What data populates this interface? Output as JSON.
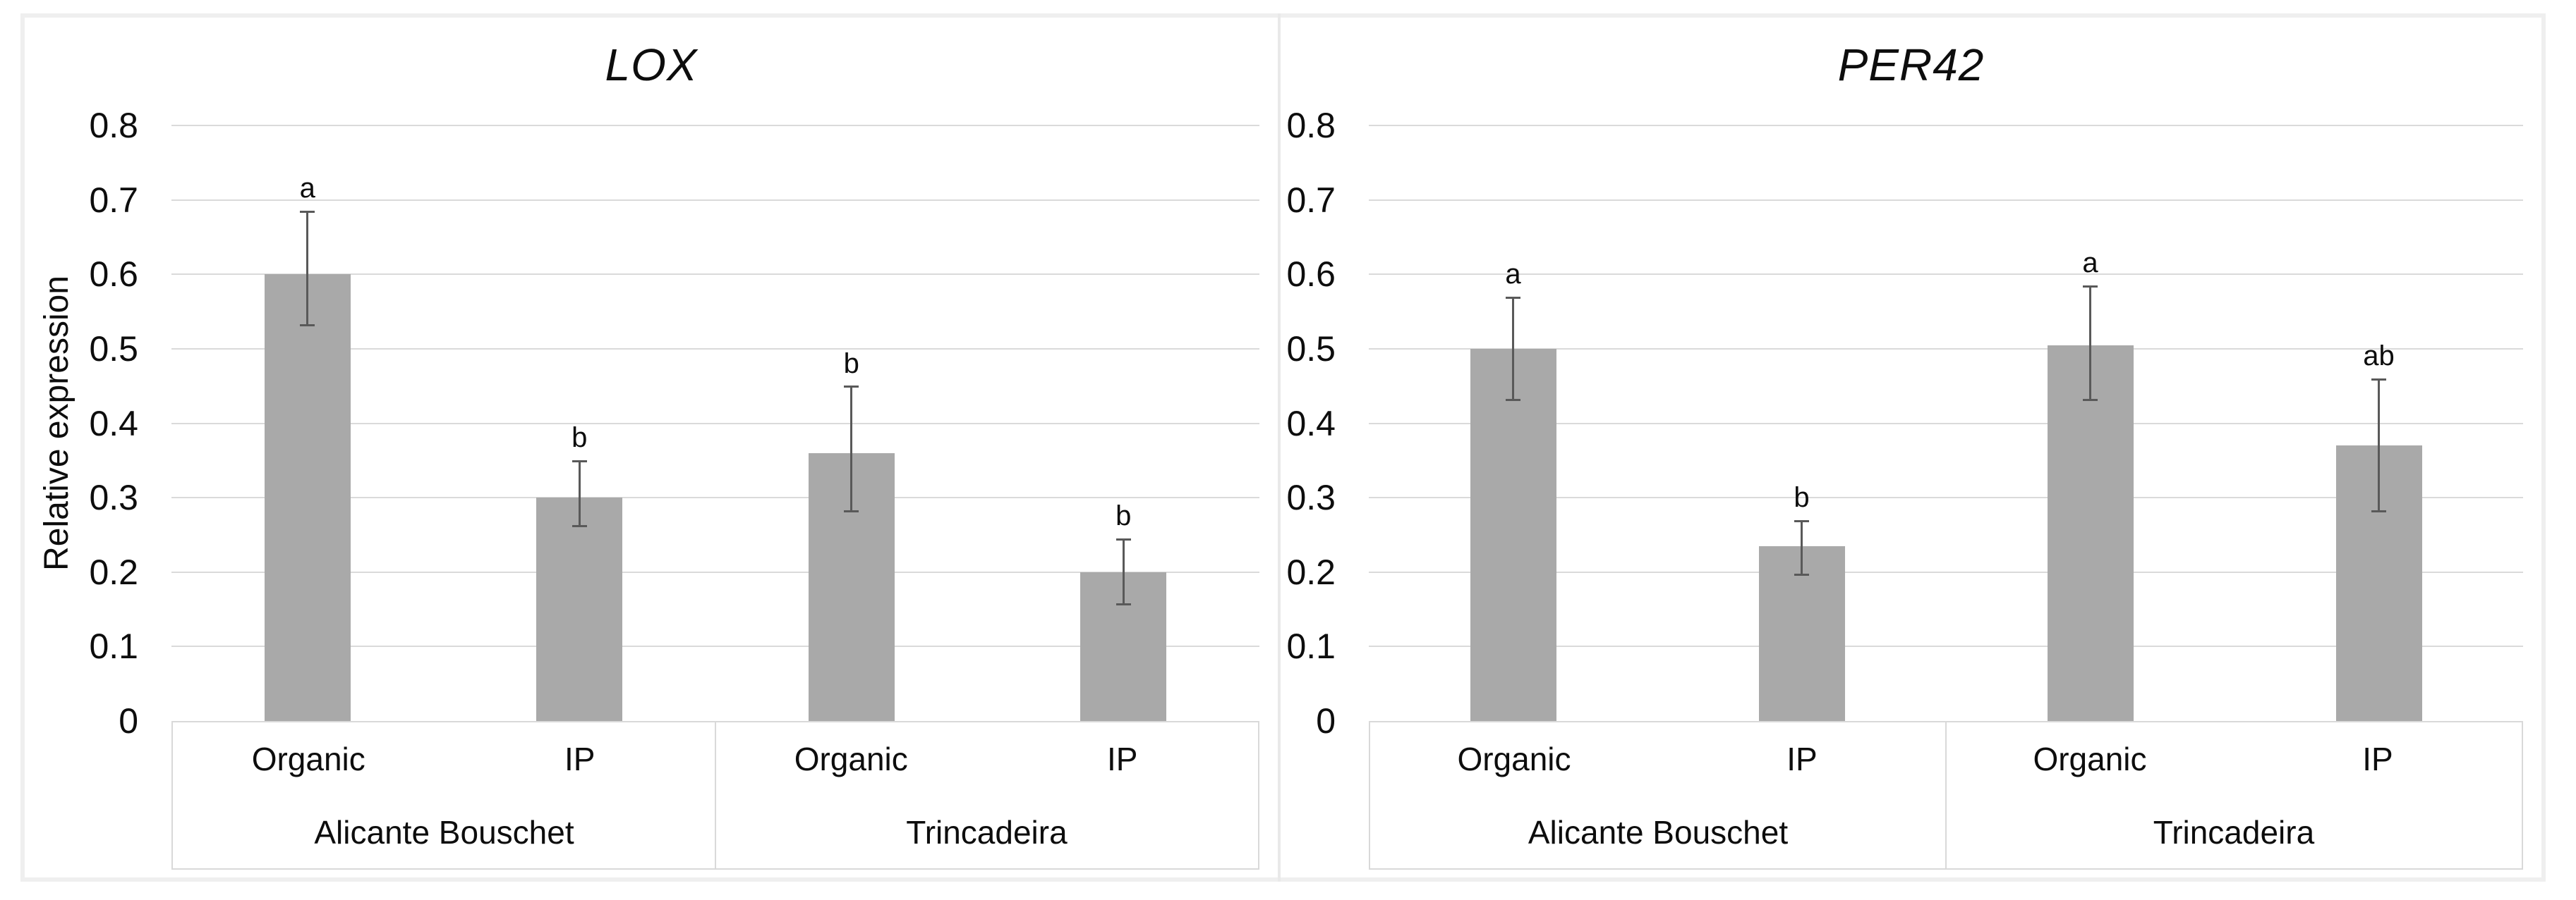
{
  "figure": {
    "description": "Two-panel grouped bar figure of gene relative expression with SD error bars and significance letters",
    "shared_ylabel": "Relative expression",
    "colors": {
      "bar_fill": "#a9a9a9",
      "error_bar": "#595959",
      "gridline": "#dadada",
      "axis_box_border": "#d9d9d9",
      "frame_border": "#efefef",
      "divider": "#e9e9e9",
      "text": "#0d0d0d"
    }
  },
  "chart_data": [
    {
      "type": "bar",
      "title": "LOX",
      "ylabel": "Relative expression",
      "xlabel": "",
      "ylim": [
        0,
        0.8
      ],
      "ytick_labels": [
        "0.8",
        "0.7",
        "0.6",
        "0.5",
        "0.4",
        "0.3",
        "0.2",
        "0.1",
        "0"
      ],
      "grid": true,
      "legend": false,
      "group_categories": [
        "Alicante Bouschet",
        "Trincadeira"
      ],
      "categories": [
        "Organic",
        "IP",
        "Organic",
        "IP"
      ],
      "values": [
        0.6,
        0.3,
        0.36,
        0.2
      ],
      "error_low": [
        0.53,
        0.26,
        0.28,
        0.155
      ],
      "error_high": [
        0.685,
        0.35,
        0.45,
        0.245
      ],
      "sig_letters": [
        "a",
        "b",
        "b",
        "b"
      ]
    },
    {
      "type": "bar",
      "title": "PER42",
      "ylabel": "",
      "xlabel": "",
      "ylim": [
        0,
        0.8
      ],
      "ytick_labels": [
        "0.8",
        "0.7",
        "0.6",
        "0.5",
        "0.4",
        "0.3",
        "0.2",
        "0.1",
        "0"
      ],
      "grid": true,
      "legend": false,
      "group_categories": [
        "Alicante Bouschet",
        "Trincadeira"
      ],
      "categories": [
        "Organic",
        "IP",
        "Organic",
        "IP"
      ],
      "values": [
        0.5,
        0.235,
        0.505,
        0.37
      ],
      "error_low": [
        0.43,
        0.195,
        0.43,
        0.28
      ],
      "error_high": [
        0.57,
        0.27,
        0.585,
        0.46
      ],
      "sig_letters": [
        "a",
        "b",
        "a",
        "ab"
      ]
    }
  ]
}
